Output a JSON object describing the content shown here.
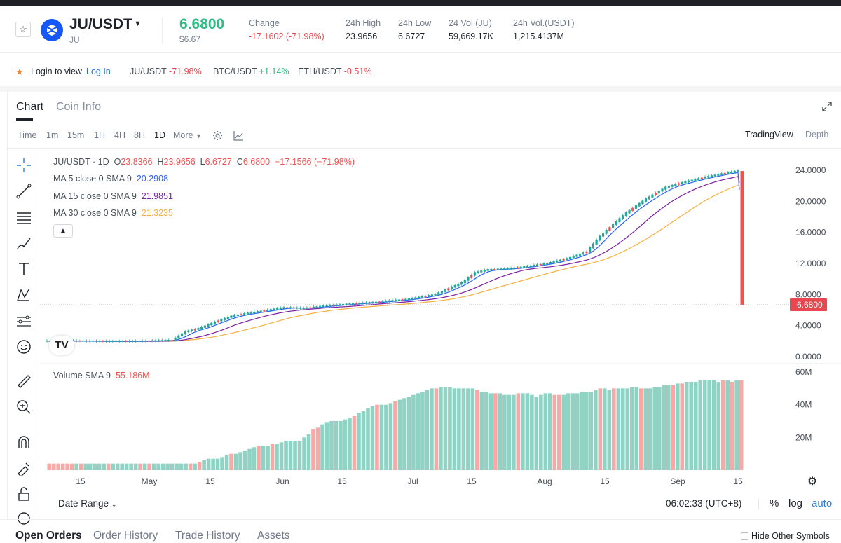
{
  "header": {
    "pair": "JU/USDT",
    "pair_sub": "JU",
    "price": "6.6800",
    "price_usd": "$6.67",
    "stats": [
      {
        "label": "Change",
        "value": "-17.1602 (-71.98%)",
        "negative": true
      },
      {
        "label": "24h High",
        "value": "23.9656"
      },
      {
        "label": "24h Low",
        "value": "6.6727"
      },
      {
        "label": "24 Vol.(JU)",
        "value": "59,669.17K"
      },
      {
        "label": "24h Vol.(USDT)",
        "value": "1,215.4137M"
      }
    ]
  },
  "login_strip": {
    "text": "Login to view",
    "link": "Log In",
    "tickers": [
      {
        "symbol": "JU/USDT",
        "change": "-71.98%",
        "dir": "dn"
      },
      {
        "symbol": "BTC/USDT",
        "change": "+1.14%",
        "dir": "up"
      },
      {
        "symbol": "ETH/USDT",
        "change": "-0.51%",
        "dir": "dn"
      }
    ]
  },
  "tabs": {
    "chart": "Chart",
    "coin_info": "Coin Info"
  },
  "intervals": [
    "Time",
    "1m",
    "15m",
    "1H",
    "4H",
    "8H",
    "1D"
  ],
  "interval_more": "More",
  "interval_selected": "1D",
  "views": {
    "tradingview": "TradingView",
    "depth": "Depth"
  },
  "legend": {
    "ohlc_title": "JU/USDT · 1D",
    "o_label": "O",
    "o": "23.8366",
    "h_label": "H",
    "h": "23.9656",
    "l_label": "L",
    "l": "6.6727",
    "c_label": "C",
    "c": "6.6800",
    "chg": "−17.1566 (−71.98%)",
    "ma5_label": "MA 5 close 0 SMA 9",
    "ma5": "20.2908",
    "ma15_label": "MA 15 close 0 SMA 9",
    "ma15": "21.9851",
    "ma30_label": "MA 30 close 0 SMA 9",
    "ma30": "21.3235",
    "vol_label": "Volume SMA 9",
    "vol": "55.186M"
  },
  "price_axis": [
    "24.0000",
    "20.0000",
    "16.0000",
    "12.0000",
    "8.0000",
    "4.0000",
    "0.0000"
  ],
  "price_tag": "6.6800",
  "volume_axis": [
    "60M",
    "40M",
    "20M"
  ],
  "time_axis": [
    "15",
    "May",
    "15",
    "Jun",
    "15",
    "Jul",
    "15",
    "Aug",
    "15",
    "Sep",
    "15"
  ],
  "bottom": {
    "date_range": "Date Range",
    "clock": "06:02:33 (UTC+8)",
    "pct": "%",
    "log": "log",
    "auto": "auto"
  },
  "order_tabs": [
    "Open Orders",
    "Order History",
    "Trade History",
    "Assets"
  ],
  "hide_other": "Hide Other Symbols",
  "colors": {
    "up": "#26a69a",
    "down": "#ef5350",
    "ma5": "#2962ff",
    "ma15": "#7b1fa2",
    "ma30": "#f5b041"
  },
  "chart_data": {
    "type": "candlestick",
    "series_summary": {
      "price_start_approx": 2.0,
      "price_before_drop_approx": 23.9,
      "last_close": 6.68,
      "price_ylim": [
        0,
        24
      ],
      "volume_ylim": [
        0,
        60
      ]
    },
    "price_points": [
      [
        0,
        2.0
      ],
      [
        10,
        2.0
      ],
      [
        20,
        1.95
      ],
      [
        30,
        2.0
      ],
      [
        38,
        2.1
      ],
      [
        42,
        3.2
      ],
      [
        46,
        3.6
      ],
      [
        52,
        4.6
      ],
      [
        56,
        5.2
      ],
      [
        60,
        5.5
      ],
      [
        66,
        5.9
      ],
      [
        72,
        6.3
      ],
      [
        78,
        6.2
      ],
      [
        84,
        6.5
      ],
      [
        90,
        6.7
      ],
      [
        100,
        7.0
      ],
      [
        110,
        7.4
      ],
      [
        118,
        8.0
      ],
      [
        126,
        9.5
      ],
      [
        130,
        10.8
      ],
      [
        134,
        11.2
      ],
      [
        140,
        11.3
      ],
      [
        146,
        11.6
      ],
      [
        152,
        12.0
      ],
      [
        158,
        12.6
      ],
      [
        164,
        13.5
      ],
      [
        168,
        15.5
      ],
      [
        172,
        17.0
      ],
      [
        176,
        18.5
      ],
      [
        182,
        20.3
      ],
      [
        188,
        21.8
      ],
      [
        194,
        22.5
      ],
      [
        200,
        23.1
      ],
      [
        206,
        23.6
      ],
      [
        210,
        23.9
      ]
    ],
    "volume_values": [
      4,
      4,
      4,
      4,
      4,
      4,
      4,
      4,
      4,
      4,
      4,
      4,
      4,
      4,
      4,
      4,
      4,
      4,
      4,
      4,
      4,
      4,
      4,
      4,
      4,
      4,
      4,
      4,
      4,
      4,
      4,
      4,
      4,
      5,
      6,
      7,
      7,
      7,
      8,
      9,
      10,
      10,
      11,
      12,
      13,
      14,
      15,
      15,
      15,
      16,
      16,
      17,
      18,
      18,
      18,
      18,
      20,
      22,
      25,
      26,
      28,
      29,
      30,
      30,
      30,
      31,
      32,
      33,
      35,
      36,
      38,
      39,
      40,
      40,
      40,
      41,
      42,
      43,
      44,
      45,
      46,
      47,
      48,
      49,
      50,
      50,
      51,
      51,
      51,
      50,
      50,
      50,
      50,
      50,
      49,
      48,
      48,
      47,
      47,
      47,
      46,
      46,
      46,
      47,
      47,
      47,
      46,
      45,
      46,
      47,
      47,
      46,
      46,
      46,
      47,
      47,
      47,
      48,
      48,
      48,
      49,
      50,
      50,
      49,
      50,
      50,
      50,
      50,
      51,
      51,
      50,
      50,
      50,
      51,
      51,
      52,
      52,
      52,
      53,
      53,
      54,
      54,
      54,
      55,
      55,
      55,
      55,
      54,
      55,
      55,
      54,
      55,
      55
    ]
  }
}
